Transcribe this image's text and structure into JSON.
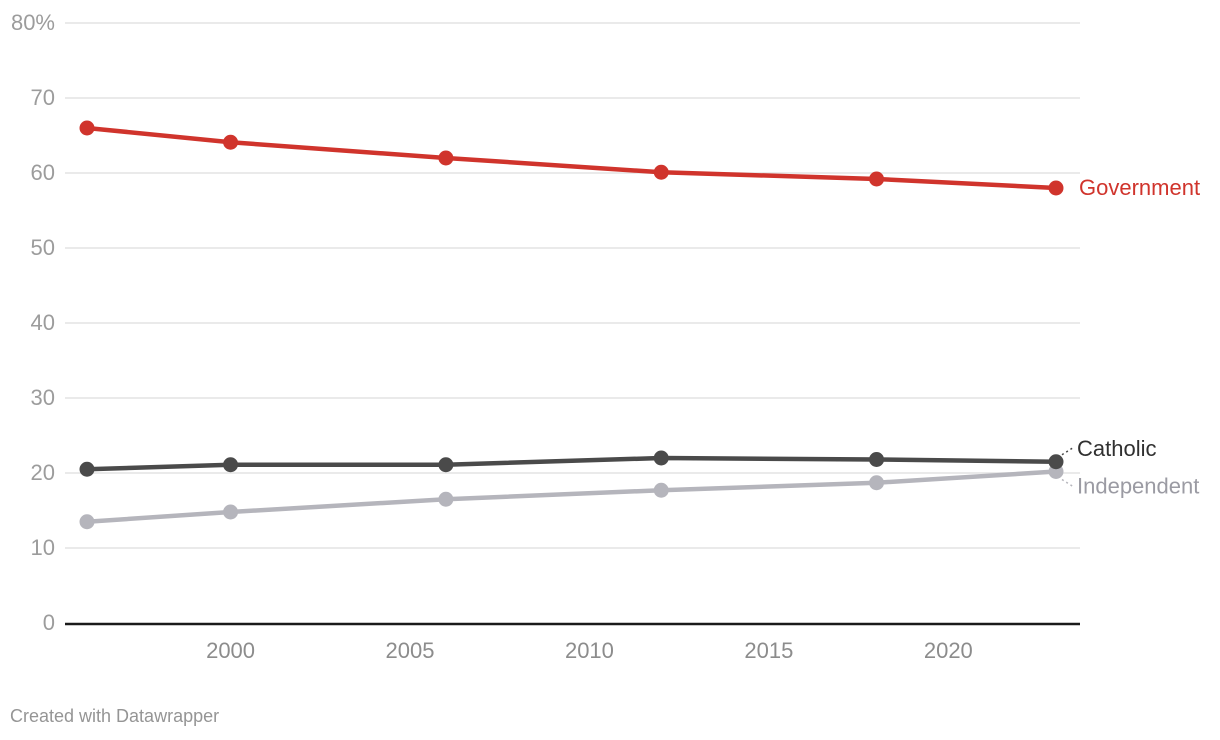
{
  "chart": {
    "footer_text": "Created with Datawrapper"
  },
  "chart_data": {
    "type": "line",
    "title": "",
    "x": [
      1996,
      2000,
      2006,
      2012,
      2018,
      2023
    ],
    "xlim": [
      1996,
      2023
    ],
    "ylim": [
      0,
      80
    ],
    "grid": true,
    "legend_position": "direct-labels-right",
    "x_tick_values": [
      2000,
      2005,
      2010,
      2015,
      2020
    ],
    "x_tick_labels": [
      "2000",
      "2005",
      "2010",
      "2015",
      "2020"
    ],
    "y_tick_values": [
      0,
      10,
      20,
      30,
      40,
      50,
      60,
      70,
      80
    ],
    "y_tick_labels": [
      "0",
      "10",
      "20",
      "30",
      "40",
      "50",
      "60",
      "70",
      "80%"
    ],
    "series": [
      {
        "name": "Government",
        "values": [
          66.0,
          64.1,
          62.0,
          60.1,
          59.2,
          58.0
        ],
        "color": "#d0342c",
        "label_color": "#d0342c",
        "leader_color": null
      },
      {
        "name": "Catholic",
        "values": [
          20.5,
          21.1,
          21.1,
          22.0,
          21.8,
          21.5
        ],
        "color": "#4a4a4a",
        "label_color": "#303030",
        "leader_color": "#4a4a4a"
      },
      {
        "name": "Independent",
        "values": [
          13.5,
          14.8,
          16.5,
          17.7,
          18.7,
          20.2
        ],
        "color": "#b5b5bc",
        "label_color": "#9b9ba3",
        "leader_color": "#b5b5bc"
      }
    ],
    "colors": {
      "grid": "#e7e7e7",
      "axis": "#1a1a1a",
      "y_tick_label": "#9c9c9c",
      "x_tick_label": "#8c8c8c",
      "footer": "#959595",
      "background": "#ffffff"
    }
  }
}
